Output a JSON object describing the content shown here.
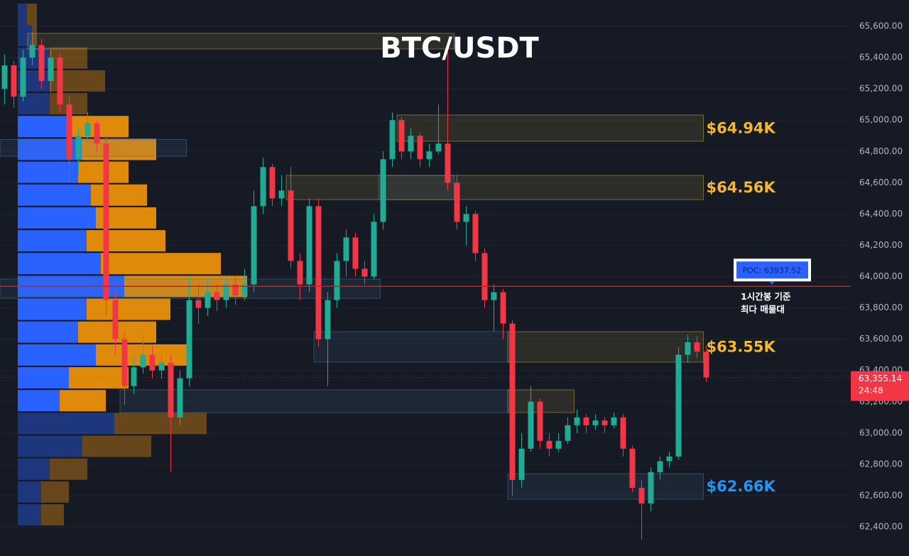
{
  "chart_data": {
    "type": "candlestick",
    "title": "BTC/USDT",
    "ylim": [
      62214,
      65768
    ],
    "yticks": [
      {
        "value": 62400,
        "label": "62,400.00"
      },
      {
        "value": 62600,
        "label": "62,600.00"
      },
      {
        "value": 62800,
        "label": "62,800.00"
      },
      {
        "value": 63000,
        "label": "63,000.00"
      },
      {
        "value": 63200,
        "label": "63,200.00"
      },
      {
        "value": 63400,
        "label": "63,400.00"
      },
      {
        "value": 63600,
        "label": "63,600.00"
      },
      {
        "value": 63800,
        "label": "63,800.00"
      },
      {
        "value": 64000,
        "label": "64,000.00"
      },
      {
        "value": 64200,
        "label": "64,200.00"
      },
      {
        "value": 64400,
        "label": "64,400.00"
      },
      {
        "value": 64600,
        "label": "64,600.00"
      },
      {
        "value": 64800,
        "label": "64,800.00"
      },
      {
        "value": 65000,
        "label": "65,000.00"
      },
      {
        "value": 65200,
        "label": "65,200.00"
      },
      {
        "value": 65400,
        "label": "65,400.00"
      },
      {
        "value": 65600,
        "label": "65,600.00"
      }
    ],
    "grid": true,
    "up_color": "#22ab94",
    "down_color": "#f23645",
    "candles": [
      [
        65200,
        65420,
        65100,
        65350
      ],
      [
        65350,
        65380,
        65080,
        65150
      ],
      [
        65150,
        65450,
        65120,
        65400
      ],
      [
        65400,
        65560,
        65350,
        65480
      ],
      [
        65480,
        65520,
        65200,
        65250
      ],
      [
        65250,
        65450,
        65180,
        65400
      ],
      [
        65400,
        65430,
        65050,
        65100
      ],
      [
        65100,
        65150,
        64600,
        64750
      ],
      [
        64750,
        64950,
        64650,
        64900
      ],
      [
        64900,
        65050,
        64850,
        64980
      ],
      [
        64980,
        65000,
        64800,
        64850
      ],
      [
        64850,
        64900,
        63750,
        63850
      ],
      [
        63850,
        63900,
        63500,
        63600
      ],
      [
        63600,
        63650,
        63180,
        63300
      ],
      [
        63300,
        63480,
        63250,
        63420
      ],
      [
        63420,
        63620,
        63380,
        63500
      ],
      [
        63500,
        63560,
        63350,
        63400
      ],
      [
        63400,
        63500,
        63350,
        63450
      ],
      [
        63450,
        63500,
        62750,
        63100
      ],
      [
        63100,
        63400,
        63050,
        63350
      ],
      [
        63350,
        64000,
        63300,
        63850
      ],
      [
        63850,
        63950,
        63700,
        63800
      ],
      [
        63800,
        63980,
        63750,
        63900
      ],
      [
        63900,
        63950,
        63780,
        63850
      ],
      [
        63850,
        64000,
        63800,
        63950
      ],
      [
        63950,
        64000,
        63820,
        63880
      ],
      [
        63880,
        64050,
        63850,
        63950
      ],
      [
        63950,
        64550,
        63900,
        64450
      ],
      [
        64450,
        64760,
        64400,
        64700
      ],
      [
        64700,
        64720,
        64450,
        64500
      ],
      [
        64500,
        64650,
        64450,
        64550
      ],
      [
        64550,
        64700,
        64050,
        64100
      ],
      [
        64100,
        64150,
        63850,
        63950
      ],
      [
        63950,
        64500,
        63900,
        64450
      ],
      [
        64450,
        64500,
        63550,
        63600
      ],
      [
        63600,
        63900,
        63300,
        63850
      ],
      [
        63850,
        64150,
        63800,
        64100
      ],
      [
        64100,
        64300,
        64000,
        64250
      ],
      [
        64250,
        64280,
        64000,
        64050
      ],
      [
        64050,
        64100,
        63950,
        64000
      ],
      [
        64000,
        64400,
        63980,
        64350
      ],
      [
        64350,
        64800,
        64300,
        64750
      ],
      [
        64750,
        65050,
        64700,
        65000
      ],
      [
        65000,
        65020,
        64750,
        64800
      ],
      [
        64800,
        64950,
        64750,
        64900
      ],
      [
        64900,
        64920,
        64700,
        64750
      ],
      [
        64750,
        64850,
        64700,
        64800
      ],
      [
        64800,
        65100,
        64780,
        64850
      ],
      [
        64850,
        65450,
        64550,
        64600
      ],
      [
        64600,
        64650,
        64300,
        64350
      ],
      [
        64350,
        64450,
        64200,
        64400
      ],
      [
        64400,
        64420,
        64100,
        64150
      ],
      [
        64150,
        64180,
        63800,
        63850
      ],
      [
        63850,
        63950,
        63650,
        63900
      ],
      [
        63900,
        63920,
        63600,
        63700
      ],
      [
        63700,
        63720,
        62600,
        62700
      ],
      [
        62700,
        63000,
        62650,
        62900
      ],
      [
        62900,
        63300,
        62880,
        63200
      ],
      [
        63200,
        63220,
        62900,
        62950
      ],
      [
        62950,
        63000,
        62850,
        62900
      ],
      [
        62900,
        63000,
        62880,
        62950
      ],
      [
        62950,
        63100,
        62930,
        63050
      ],
      [
        63050,
        63150,
        63000,
        63100
      ],
      [
        63100,
        63120,
        63000,
        63050
      ],
      [
        63050,
        63120,
        63020,
        63080
      ],
      [
        63080,
        63100,
        63000,
        63050
      ],
      [
        63050,
        63130,
        63030,
        63100
      ],
      [
        63100,
        63120,
        62850,
        62900
      ],
      [
        62900,
        62920,
        62620,
        62650
      ],
      [
        62650,
        62700,
        62320,
        62550
      ],
      [
        62550,
        62780,
        62500,
        62750
      ],
      [
        62750,
        62850,
        62700,
        62820
      ],
      [
        62820,
        62880,
        62780,
        62850
      ],
      [
        62850,
        63550,
        62830,
        63500
      ],
      [
        63500,
        63630,
        63450,
        63580
      ],
      [
        63580,
        63620,
        63480,
        63520
      ],
      [
        63520,
        63560,
        63330,
        63355
      ]
    ],
    "zones": [
      {
        "top": 65555,
        "bottom": 65455,
        "start": 3,
        "end": 49,
        "color": "#b8a040"
      },
      {
        "top": 64876,
        "bottom": 64769,
        "start": 0,
        "end": 20,
        "color": "#4a6e9a"
      },
      {
        "top": 63984,
        "bottom": 63861,
        "start": 0,
        "end": 41,
        "color": "#4a6e9a"
      },
      {
        "top": 63276,
        "bottom": 63131,
        "start": 13,
        "end": 55,
        "color": "#4a6e9a"
      },
      {
        "top": 63276,
        "bottom": 63131,
        "start": 55,
        "end": 62,
        "color": "#b8a040"
      },
      {
        "top": 64647,
        "bottom": 64492,
        "start": 41,
        "end": 49,
        "color": "#4a6e9a"
      },
      {
        "top": 63648,
        "bottom": 63453,
        "start": 34,
        "end": 55,
        "color": "#4a6e9a"
      },
      {
        "top": 65033,
        "bottom": 64865,
        "start": 43,
        "end": 76,
        "color": "#b8a040",
        "label": "$64.94K",
        "label_color": "#f5b82e"
      },
      {
        "top": 64647,
        "bottom": 64492,
        "start": 31,
        "end": 76,
        "color": "#b8a040",
        "label": "$64.56K",
        "label_color": "#f5b82e"
      },
      {
        "top": 63648,
        "bottom": 63453,
        "start": 55,
        "end": 76,
        "color": "#b8a040",
        "label": "$63.55K",
        "label_color": "#f5b82e"
      },
      {
        "top": 62740,
        "bottom": 62577,
        "start": 55,
        "end": 76,
        "color": "#4a6e9a",
        "label": "$62.66K",
        "label_color": "#2196f3"
      }
    ],
    "poc": {
      "value": 63937.52,
      "label": "POC: 63937.52",
      "color": "#d01c1c"
    },
    "annotation": [
      "1시간봉 기준",
      "최다 매물대"
    ],
    "last_price": {
      "value": 63355.14,
      "label": "63,355.14"
    },
    "countdown": "24:48",
    "volume_profile": {
      "buy_color": "#2962ff",
      "sell_color": "#e08a0c",
      "value_area": [
        63207,
        64959
      ],
      "rows": [
        {
          "price": 65677,
          "buy": 13,
          "sell": 14
        },
        {
          "price": 65541,
          "buy": 20,
          "sell": 7
        },
        {
          "price": 65397,
          "buy": 45,
          "sell": 53
        },
        {
          "price": 65251,
          "buy": 45,
          "sell": 78
        },
        {
          "price": 65105,
          "buy": 45,
          "sell": 53
        },
        {
          "price": 64959,
          "buy": 72,
          "sell": 84
        },
        {
          "price": 64813,
          "buy": 90,
          "sell": 105
        },
        {
          "price": 64667,
          "buy": 85,
          "sell": 71
        },
        {
          "price": 64521,
          "buy": 103,
          "sell": 79
        },
        {
          "price": 64375,
          "buy": 110,
          "sell": 85
        },
        {
          "price": 64229,
          "buy": 97,
          "sell": 111
        },
        {
          "price": 64083,
          "buy": 117,
          "sell": 169
        },
        {
          "price": 63937,
          "buy": 150,
          "sell": 173
        },
        {
          "price": 63791,
          "buy": 97,
          "sell": 118
        },
        {
          "price": 63645,
          "buy": 85,
          "sell": 110
        },
        {
          "price": 63499,
          "buy": 110,
          "sell": 130
        },
        {
          "price": 63353,
          "buy": 72,
          "sell": 84
        },
        {
          "price": 63207,
          "buy": 59,
          "sell": 65
        },
        {
          "price": 63061,
          "buy": 136,
          "sell": 130
        },
        {
          "price": 62915,
          "buy": 91,
          "sell": 97
        },
        {
          "price": 62769,
          "buy": 45,
          "sell": 53
        },
        {
          "price": 62623,
          "buy": 33,
          "sell": 39
        },
        {
          "price": 62477,
          "buy": 33,
          "sell": 32
        }
      ]
    }
  }
}
